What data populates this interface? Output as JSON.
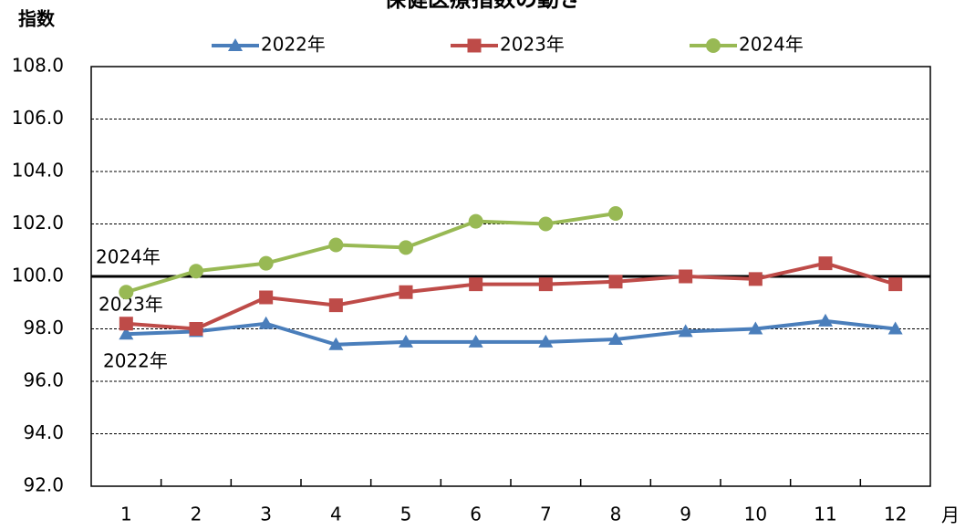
{
  "chart_data": {
    "type": "line",
    "title": "保健医療指数の動き",
    "y_label": "指数",
    "x_label": "月",
    "categories": [
      "1",
      "2",
      "3",
      "4",
      "5",
      "6",
      "7",
      "8",
      "9",
      "10",
      "11",
      "12"
    ],
    "series": [
      {
        "name": "2022年",
        "color": "#4a7ebb",
        "marker": "triangle",
        "values": [
          97.8,
          97.9,
          98.2,
          97.4,
          97.5,
          97.5,
          97.5,
          97.6,
          97.9,
          98.0,
          98.3,
          98.0
        ]
      },
      {
        "name": "2023年",
        "color": "#be4b48",
        "marker": "square",
        "values": [
          98.2,
          98.0,
          99.2,
          98.9,
          99.4,
          99.7,
          99.7,
          99.8,
          100.0,
          99.9,
          100.5,
          99.7
        ]
      },
      {
        "name": "2024年",
        "color": "#98b954",
        "marker": "circle",
        "values": [
          99.4,
          100.2,
          100.5,
          101.2,
          101.1,
          102.1,
          102.0,
          102.4,
          null,
          null,
          null,
          null
        ]
      }
    ],
    "annotations": [
      "2024年",
      "2023年",
      "2022年"
    ],
    "reference_line": 100,
    "ylim": [
      92,
      108
    ],
    "yticks": [
      {
        "value": 92,
        "label": "92.0"
      },
      {
        "value": 94,
        "label": "94.0"
      },
      {
        "value": 96,
        "label": "96.0"
      },
      {
        "value": 98,
        "label": "98.0"
      },
      {
        "value": 100,
        "label": "100.0"
      },
      {
        "value": 102,
        "label": "102.0"
      },
      {
        "value": 104,
        "label": "104.0"
      },
      {
        "value": 106,
        "label": "106.0"
      },
      {
        "value": 108,
        "label": "108.0"
      }
    ],
    "grid": true
  }
}
